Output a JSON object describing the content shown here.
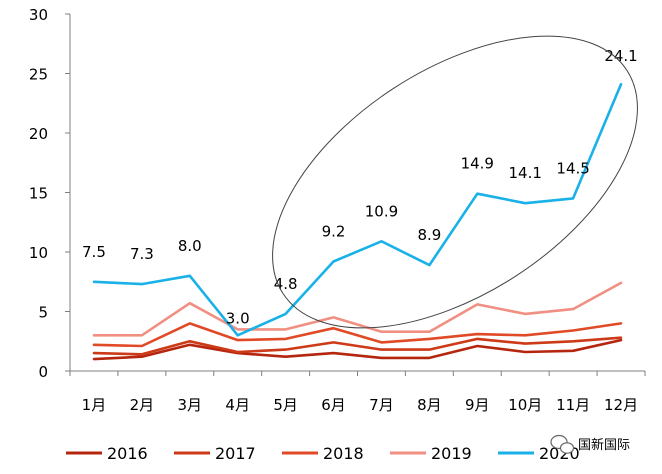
{
  "chart_data": {
    "type": "line",
    "title": "",
    "xlabel": "",
    "ylabel": "",
    "ylim": [
      0,
      30
    ],
    "yticks": [
      0,
      5,
      10,
      15,
      20,
      25,
      30
    ],
    "categories": [
      "1月",
      "2月",
      "3月",
      "4月",
      "5月",
      "6月",
      "7月",
      "8月",
      "9月",
      "10月",
      "11月",
      "12月"
    ],
    "series": [
      {
        "name": "2016",
        "color": "#b5260f",
        "values": [
          1.0,
          1.2,
          2.2,
          1.5,
          1.2,
          1.5,
          1.1,
          1.1,
          2.1,
          1.6,
          1.7,
          2.6
        ]
      },
      {
        "name": "2017",
        "color": "#cc3a18",
        "values": [
          1.5,
          1.4,
          2.5,
          1.6,
          1.8,
          2.4,
          1.8,
          1.8,
          2.7,
          2.3,
          2.5,
          2.8
        ]
      },
      {
        "name": "2018",
        "color": "#e04a26",
        "values": [
          2.2,
          2.1,
          4.0,
          2.6,
          2.7,
          3.6,
          2.4,
          2.7,
          3.1,
          3.0,
          3.4,
          4.0
        ]
      },
      {
        "name": "2019",
        "color": "#f19082",
        "values": [
          3.0,
          3.0,
          5.7,
          3.5,
          3.5,
          4.5,
          3.3,
          3.3,
          5.6,
          4.8,
          5.2,
          7.4
        ]
      },
      {
        "name": "2020",
        "color": "#1ab0e8",
        "values": [
          7.5,
          7.3,
          8.0,
          3.0,
          4.8,
          9.2,
          10.9,
          8.9,
          14.9,
          14.1,
          14.5,
          24.1
        ]
      }
    ],
    "data_labels": [
      "7.5",
      "7.3",
      "8.0",
      "3.0",
      "4.8",
      "9.2",
      "10.9",
      "8.9",
      "14.9",
      "14.1",
      "14.5",
      "24.1"
    ],
    "annotation": "ellipse highlighting 2020 series from May to December",
    "legend_position": "bottom"
  },
  "watermark": {
    "text": "国新国际"
  }
}
